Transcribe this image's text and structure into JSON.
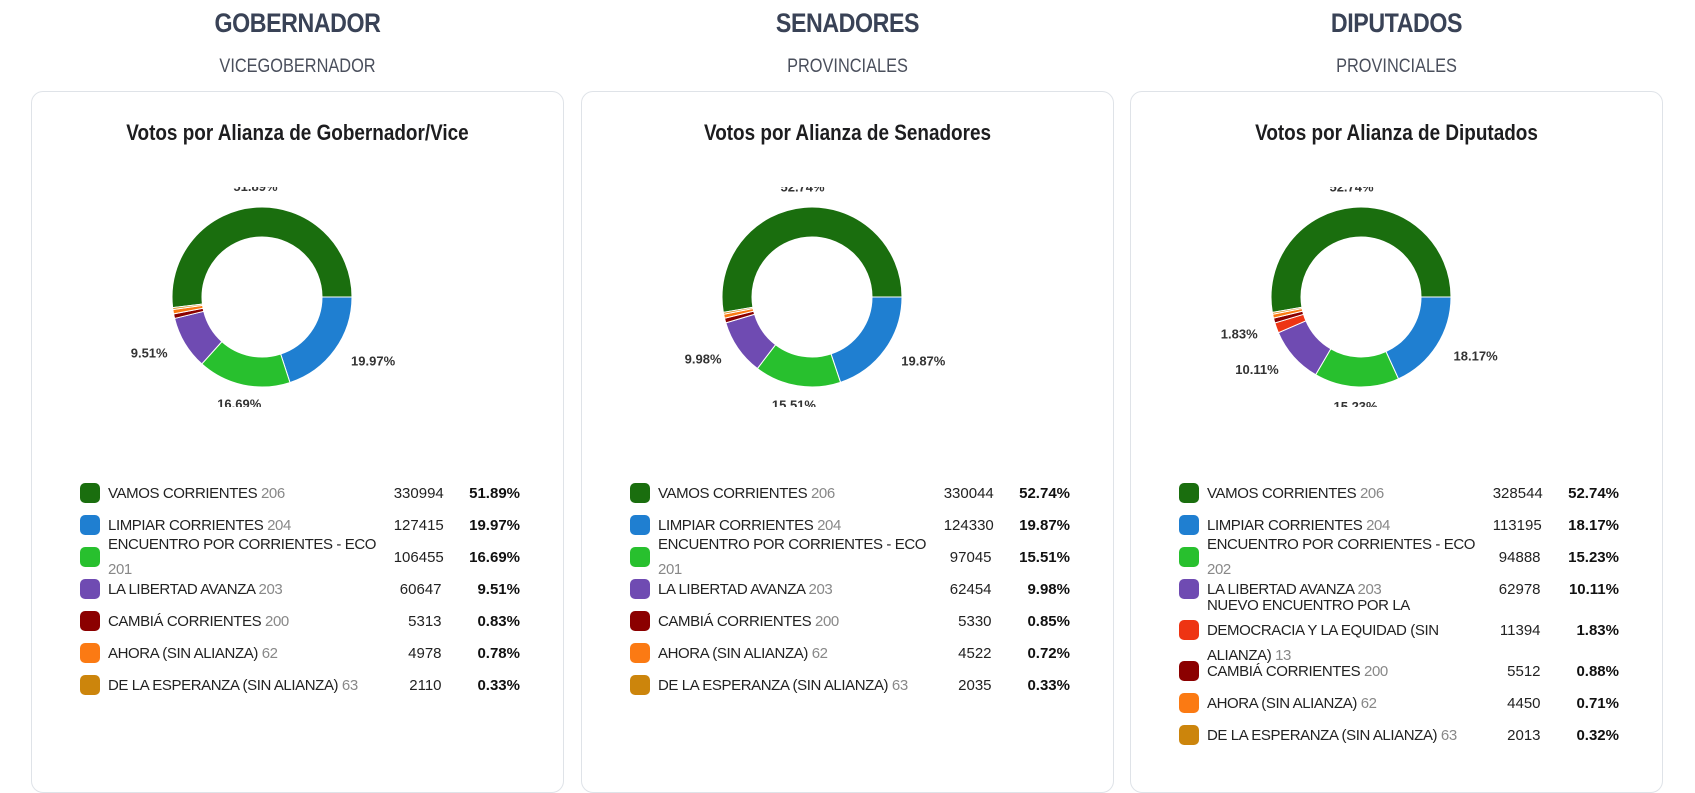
{
  "columns": [
    {
      "title": "GOBERNADOR",
      "subtitle": "VICEGOBERNADOR",
      "chart_title": "Votos por Alianza de Gobernador/Vice"
    },
    {
      "title": "SENADORES",
      "subtitle": "PROVINCIALES",
      "chart_title": "Votos por Alianza de Senadores"
    },
    {
      "title": "DIPUTADOS",
      "subtitle": "PROVINCIALES",
      "chart_title": "Votos por Alianza de Diputados"
    }
  ],
  "chart_data": [
    {
      "type": "pie",
      "title": "Votos por Alianza de Gobernador/Vice",
      "slices": [
        {
          "label": "VAMOS CORRIENTES",
          "code": "206",
          "votes": 330994,
          "percent": "51.89%",
          "value": 51.89,
          "color": "#1a6e0e",
          "show_label": true
        },
        {
          "label": "LIMPIAR CORRIENTES",
          "code": "204",
          "votes": 127415,
          "percent": "19.97%",
          "value": 19.97,
          "color": "#1f7fd1",
          "show_label": true
        },
        {
          "label": "ENCUENTRO POR CORRIENTES - ECO",
          "code": "201",
          "votes": 106455,
          "percent": "16.69%",
          "value": 16.69,
          "color": "#28c02e",
          "show_label": true
        },
        {
          "label": "LA LIBERTAD AVANZA",
          "code": "203",
          "votes": 60647,
          "percent": "9.51%",
          "value": 9.51,
          "color": "#6f4bb2",
          "show_label": true
        },
        {
          "label": "CAMBIÁ CORRIENTES",
          "code": "200",
          "votes": 5313,
          "percent": "0.83%",
          "value": 0.83,
          "color": "#8b0000",
          "show_label": false
        },
        {
          "label": "AHORA (SIN ALIANZA)",
          "code": "62",
          "votes": 4978,
          "percent": "0.78%",
          "value": 0.78,
          "color": "#fb7a13",
          "show_label": false
        },
        {
          "label": "DE LA ESPERANZA (SIN ALIANZA)",
          "code": "63",
          "votes": 2110,
          "percent": "0.33%",
          "value": 0.33,
          "color": "#cc850c",
          "show_label": false
        }
      ]
    },
    {
      "type": "pie",
      "title": "Votos por Alianza de Senadores",
      "slices": [
        {
          "label": "VAMOS CORRIENTES",
          "code": "206",
          "votes": 330044,
          "percent": "52.74%",
          "value": 52.74,
          "color": "#1a6e0e",
          "show_label": true
        },
        {
          "label": "LIMPIAR CORRIENTES",
          "code": "204",
          "votes": 124330,
          "percent": "19.87%",
          "value": 19.87,
          "color": "#1f7fd1",
          "show_label": true
        },
        {
          "label": "ENCUENTRO POR CORRIENTES - ECO",
          "code": "201",
          "votes": 97045,
          "percent": "15.51%",
          "value": 15.51,
          "color": "#28c02e",
          "show_label": true
        },
        {
          "label": "LA LIBERTAD AVANZA",
          "code": "203",
          "votes": 62454,
          "percent": "9.98%",
          "value": 9.98,
          "color": "#6f4bb2",
          "show_label": true
        },
        {
          "label": "CAMBIÁ CORRIENTES",
          "code": "200",
          "votes": 5330,
          "percent": "0.85%",
          "value": 0.85,
          "color": "#8b0000",
          "show_label": false
        },
        {
          "label": "AHORA (SIN ALIANZA)",
          "code": "62",
          "votes": 4522,
          "percent": "0.72%",
          "value": 0.72,
          "color": "#fb7a13",
          "show_label": false
        },
        {
          "label": "DE LA ESPERANZA (SIN ALIANZA)",
          "code": "63",
          "votes": 2035,
          "percent": "0.33%",
          "value": 0.33,
          "color": "#cc850c",
          "show_label": false
        }
      ]
    },
    {
      "type": "pie",
      "title": "Votos por Alianza de Diputados",
      "slices": [
        {
          "label": "VAMOS CORRIENTES",
          "code": "206",
          "votes": 328544,
          "percent": "52.74%",
          "value": 52.74,
          "color": "#1a6e0e",
          "show_label": true
        },
        {
          "label": "LIMPIAR CORRIENTES",
          "code": "204",
          "votes": 113195,
          "percent": "18.17%",
          "value": 18.17,
          "color": "#1f7fd1",
          "show_label": true
        },
        {
          "label": "ENCUENTRO POR CORRIENTES - ECO",
          "code": "202",
          "votes": 94888,
          "percent": "15.23%",
          "value": 15.23,
          "color": "#28c02e",
          "show_label": true
        },
        {
          "label": "LA LIBERTAD AVANZA",
          "code": "203",
          "votes": 62978,
          "percent": "10.11%",
          "value": 10.11,
          "color": "#6f4bb2",
          "show_label": true
        },
        {
          "label": "NUEVO ENCUENTRO POR LA DEMOCRACIA Y LA EQUIDAD (SIN ALIANZA)",
          "code": "13",
          "votes": 11394,
          "percent": "1.83%",
          "value": 1.83,
          "color": "#ee3413",
          "show_label": true
        },
        {
          "label": "CAMBIÁ CORRIENTES",
          "code": "200",
          "votes": 5512,
          "percent": "0.88%",
          "value": 0.88,
          "color": "#8b0000",
          "show_label": false
        },
        {
          "label": "AHORA (SIN ALIANZA)",
          "code": "62",
          "votes": 4450,
          "percent": "0.71%",
          "value": 0.71,
          "color": "#fb7a13",
          "show_label": false
        },
        {
          "label": "DE LA ESPERANZA (SIN ALIANZA)",
          "code": "63",
          "votes": 2013,
          "percent": "0.32%",
          "value": 0.32,
          "color": "#cc850c",
          "show_label": false
        }
      ]
    }
  ]
}
